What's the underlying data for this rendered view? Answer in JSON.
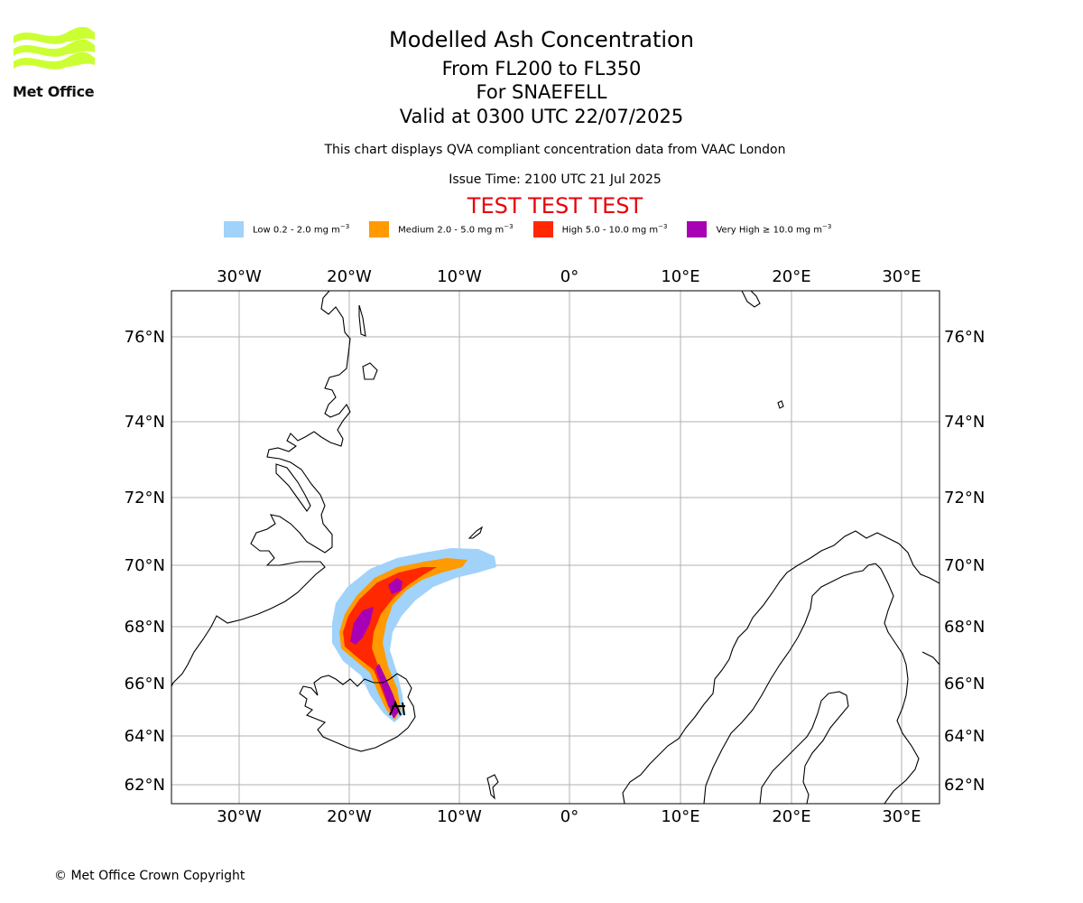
{
  "logo": {
    "text": "Met Office",
    "brand_color": "#ccff33"
  },
  "header": {
    "title": "Modelled Ash Concentration",
    "levels": "From FL200 to FL350",
    "volcano": "For SNAEFELL",
    "valid": "Valid at 0300 UTC 22/07/2025",
    "description": "This chart displays QVA compliant concentration data from VAAC London",
    "issue": "Issue Time: 2100 UTC 21 Jul 2025",
    "test_banner": "TEST TEST TEST"
  },
  "legend": [
    {
      "label": "Low 0.2 - 2.0 mg m",
      "color": "#a0d2fa"
    },
    {
      "label": "Medium 2.0 - 5.0 mg m",
      "color": "#ff9a00"
    },
    {
      "label": "High 5.0 - 10.0 mg m",
      "color": "#ff2800"
    },
    {
      "label": "Very High  ≥  10.0 mg m",
      "color": "#a800b4"
    }
  ],
  "legend_unit_exponent": "−3",
  "map": {
    "lon_ticks": [
      "30°W",
      "20°W",
      "10°W",
      "0°",
      "10°E",
      "20°E",
      "30°E"
    ],
    "lat_ticks": [
      "76°N",
      "74°N",
      "72°N",
      "70°N",
      "68°N",
      "66°N",
      "64°N",
      "62°N"
    ],
    "grid_color": "#b0b0b0",
    "coast_color": "#000000"
  },
  "footer": {
    "copyright": "© Met Office Crown Copyright"
  }
}
